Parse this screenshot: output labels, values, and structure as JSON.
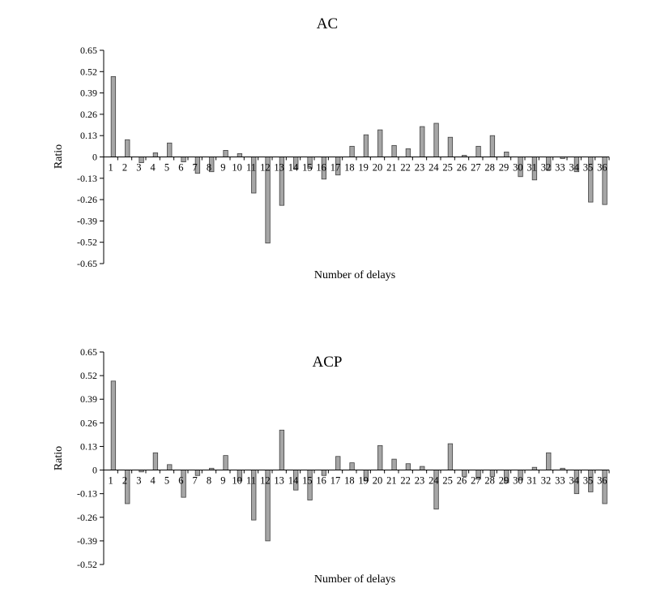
{
  "chart_data": [
    {
      "type": "bar",
      "title": "AC",
      "xlabel": "Number of delays",
      "ylabel": "Ratio",
      "ylim": [
        -0.65,
        0.65
      ],
      "yticks": [
        "0.65",
        "0.52",
        "0.39",
        "0.26",
        "0.13",
        "0",
        "-0.13",
        "-0.26",
        "-0.39",
        "-0.52",
        "-0.65"
      ],
      "categories": [
        "1",
        "2",
        "3",
        "4",
        "5",
        "6",
        "7",
        "8",
        "9",
        "10",
        "11",
        "12",
        "13",
        "14",
        "15",
        "16",
        "17",
        "18",
        "19",
        "20",
        "21",
        "22",
        "23",
        "24",
        "25",
        "26",
        "27",
        "28",
        "29",
        "30",
        "31",
        "32",
        "33",
        "34",
        "35",
        "36"
      ],
      "values": [
        0.49,
        0.105,
        -0.035,
        0.025,
        0.085,
        -0.03,
        -0.1,
        -0.09,
        0.04,
        0.02,
        -0.22,
        -0.525,
        -0.295,
        -0.075,
        -0.07,
        -0.135,
        -0.11,
        0.065,
        0.135,
        0.165,
        0.07,
        0.05,
        0.185,
        0.205,
        0.12,
        0.01,
        0.065,
        0.13,
        0.03,
        -0.12,
        -0.14,
        -0.08,
        -0.01,
        -0.09,
        -0.275,
        -0.29
      ],
      "grid": false
    },
    {
      "type": "bar",
      "title": "ACP",
      "xlabel": "Number of delays",
      "ylabel": "Ratio",
      "ylim": [
        -0.52,
        0.65
      ],
      "yticks": [
        "0.65",
        "0.52",
        "0.39",
        "0.26",
        "0.13",
        "0",
        "-0.13",
        "-0.26",
        "-0.39",
        "-0.52"
      ],
      "categories": [
        "1",
        "2",
        "3",
        "4",
        "5",
        "6",
        "7",
        "8",
        "9",
        "10",
        "11",
        "12",
        "13",
        "14",
        "15",
        "16",
        "17",
        "18",
        "19",
        "20",
        "21",
        "22",
        "23",
        "24",
        "25",
        "26",
        "27",
        "28",
        "29",
        "30",
        "31",
        "32",
        "33",
        "34",
        "35",
        "36"
      ],
      "values": [
        0.49,
        -0.185,
        -0.01,
        0.095,
        0.03,
        -0.15,
        -0.03,
        0.01,
        0.08,
        -0.06,
        -0.275,
        -0.39,
        0.22,
        -0.11,
        -0.165,
        -0.03,
        0.075,
        0.04,
        -0.06,
        0.135,
        0.06,
        0.035,
        0.02,
        -0.215,
        0.145,
        -0.035,
        -0.05,
        -0.035,
        -0.07,
        -0.055,
        0.015,
        0.095,
        0.01,
        -0.13,
        -0.12,
        -0.185
      ],
      "grid": false
    }
  ]
}
